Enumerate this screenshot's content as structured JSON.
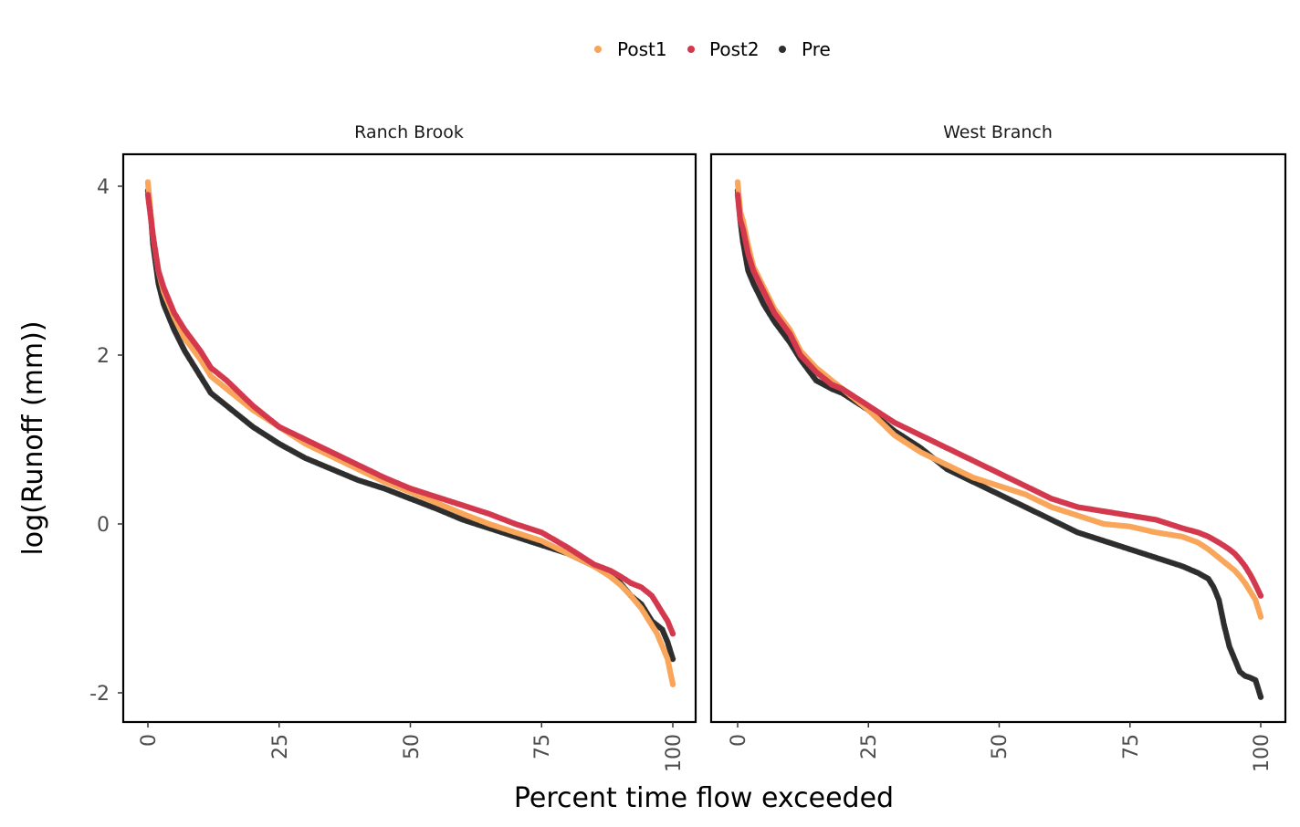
{
  "chart_data": {
    "type": "scatter",
    "xlabel": "Percent time flow exceeded",
    "ylabel": "log(Runoff (mm))",
    "xlim": [
      0,
      100
    ],
    "ylim": [
      -2.3,
      4.4
    ],
    "x_ticks": [
      0,
      25,
      50,
      75,
      100
    ],
    "y_ticks": [
      -2,
      0,
      2,
      4
    ],
    "x_tick_labels": [
      "0",
      "25",
      "50",
      "75",
      "100"
    ],
    "y_tick_labels": [
      "-2",
      "0",
      "2",
      "4"
    ],
    "grid": false,
    "legend": {
      "position": "top",
      "entries": [
        {
          "name": "Post1",
          "color": "#F8A55A"
        },
        {
          "name": "Post2",
          "color": "#D3384D"
        },
        {
          "name": "Pre",
          "color": "#2E2E2E"
        }
      ]
    },
    "panels": [
      {
        "title": "Ranch Brook",
        "series": [
          {
            "name": "Pre",
            "color": "#2E2E2E",
            "x": [
              0,
              0.5,
              1,
              2,
              3,
              5,
              7,
              10,
              12,
              15,
              18,
              20,
              25,
              30,
              35,
              40,
              45,
              50,
              55,
              60,
              65,
              70,
              75,
              80,
              85,
              88,
              90,
              92,
              94,
              95,
              96,
              97,
              98,
              99,
              100
            ],
            "y": [
              3.95,
              3.7,
              3.3,
              2.85,
              2.6,
              2.3,
              2.05,
              1.75,
              1.55,
              1.4,
              1.25,
              1.15,
              0.95,
              0.78,
              0.65,
              0.52,
              0.42,
              0.3,
              0.18,
              0.05,
              -0.05,
              -0.15,
              -0.25,
              -0.35,
              -0.5,
              -0.6,
              -0.7,
              -0.85,
              -0.95,
              -1.05,
              -1.15,
              -1.2,
              -1.25,
              -1.4,
              -1.6
            ]
          },
          {
            "name": "Post1",
            "color": "#F8A55A",
            "x": [
              0,
              0.5,
              1,
              2,
              3,
              5,
              7,
              10,
              12,
              15,
              18,
              20,
              25,
              30,
              35,
              40,
              45,
              50,
              55,
              60,
              65,
              70,
              75,
              80,
              85,
              88,
              90,
              92,
              94,
              95,
              96,
              97,
              98,
              99,
              100
            ],
            "y": [
              4.05,
              3.7,
              3.4,
              3.0,
              2.75,
              2.45,
              2.2,
              1.95,
              1.75,
              1.6,
              1.45,
              1.35,
              1.15,
              0.95,
              0.8,
              0.65,
              0.5,
              0.38,
              0.25,
              0.12,
              0.0,
              -0.1,
              -0.2,
              -0.35,
              -0.5,
              -0.62,
              -0.72,
              -0.85,
              -1.0,
              -1.1,
              -1.2,
              -1.3,
              -1.45,
              -1.6,
              -1.9
            ]
          },
          {
            "name": "Post2",
            "color": "#D3384D",
            "x": [
              0,
              0.5,
              1,
              2,
              3,
              5,
              7,
              10,
              12,
              15,
              18,
              20,
              25,
              30,
              35,
              40,
              45,
              50,
              55,
              60,
              65,
              70,
              75,
              80,
              85,
              88,
              90,
              92,
              94,
              95,
              96,
              97,
              98,
              99,
              100
            ],
            "y": [
              3.9,
              3.65,
              3.4,
              3.0,
              2.8,
              2.5,
              2.3,
              2.05,
              1.85,
              1.7,
              1.52,
              1.4,
              1.15,
              1.0,
              0.85,
              0.7,
              0.55,
              0.42,
              0.32,
              0.22,
              0.12,
              0.0,
              -0.1,
              -0.28,
              -0.48,
              -0.55,
              -0.62,
              -0.7,
              -0.75,
              -0.8,
              -0.85,
              -0.95,
              -1.05,
              -1.15,
              -1.3
            ]
          }
        ]
      },
      {
        "title": "West Branch",
        "series": [
          {
            "name": "Pre",
            "color": "#2E2E2E",
            "x": [
              0,
              0.5,
              1,
              2,
              3,
              5,
              7,
              10,
              12,
              15,
              18,
              20,
              25,
              30,
              35,
              40,
              45,
              50,
              55,
              60,
              65,
              70,
              75,
              80,
              85,
              88,
              90,
              91,
              92,
              93,
              94,
              95,
              96,
              97,
              98,
              99,
              100
            ],
            "y": [
              3.95,
              3.6,
              3.35,
              3.0,
              2.85,
              2.6,
              2.4,
              2.15,
              1.95,
              1.7,
              1.6,
              1.55,
              1.35,
              1.1,
              0.9,
              0.65,
              0.5,
              0.35,
              0.2,
              0.05,
              -0.1,
              -0.2,
              -0.3,
              -0.4,
              -0.5,
              -0.58,
              -0.65,
              -0.75,
              -0.9,
              -1.2,
              -1.45,
              -1.6,
              -1.75,
              -1.8,
              -1.82,
              -1.85,
              -2.05
            ]
          },
          {
            "name": "Post1",
            "color": "#F8A55A",
            "x": [
              0,
              0.5,
              1,
              2,
              3,
              5,
              7,
              10,
              12,
              15,
              18,
              20,
              25,
              30,
              35,
              40,
              45,
              50,
              55,
              60,
              65,
              70,
              75,
              80,
              85,
              88,
              90,
              92,
              94,
              95,
              96,
              97,
              98,
              99,
              100
            ],
            "y": [
              4.05,
              3.7,
              3.6,
              3.3,
              3.05,
              2.8,
              2.55,
              2.3,
              2.05,
              1.85,
              1.7,
              1.6,
              1.35,
              1.05,
              0.85,
              0.7,
              0.55,
              0.45,
              0.35,
              0.2,
              0.1,
              0.0,
              -0.03,
              -0.1,
              -0.15,
              -0.22,
              -0.3,
              -0.4,
              -0.5,
              -0.55,
              -0.62,
              -0.7,
              -0.8,
              -0.9,
              -1.1
            ]
          },
          {
            "name": "Post2",
            "color": "#D3384D",
            "x": [
              0,
              0.5,
              1,
              2,
              3,
              5,
              7,
              10,
              12,
              15,
              18,
              20,
              25,
              30,
              35,
              40,
              45,
              50,
              55,
              60,
              65,
              70,
              75,
              80,
              85,
              88,
              90,
              92,
              94,
              95,
              96,
              97,
              98,
              99,
              100
            ],
            "y": [
              3.9,
              3.6,
              3.5,
              3.2,
              3.0,
              2.75,
              2.5,
              2.25,
              2.0,
              1.8,
              1.65,
              1.6,
              1.4,
              1.2,
              1.05,
              0.9,
              0.75,
              0.6,
              0.45,
              0.3,
              0.2,
              0.15,
              0.1,
              0.05,
              -0.05,
              -0.1,
              -0.15,
              -0.22,
              -0.3,
              -0.35,
              -0.42,
              -0.5,
              -0.6,
              -0.72,
              -0.85
            ]
          }
        ]
      }
    ]
  }
}
